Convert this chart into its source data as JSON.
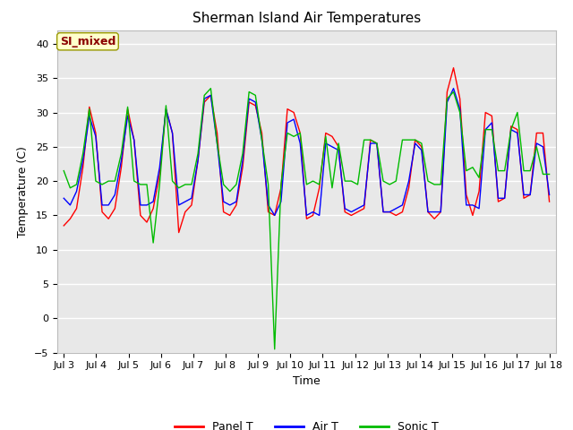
{
  "title": "Sherman Island Air Temperatures",
  "xlabel": "Time",
  "ylabel": "Temperature (C)",
  "ylim": [
    -5,
    42
  ],
  "yticks": [
    -5,
    0,
    5,
    10,
    15,
    20,
    25,
    30,
    35,
    40
  ],
  "xtick_labels": [
    "Jul 3",
    "Jul 4",
    "Jul 5",
    "Jul 6",
    "Jul 7",
    "Jul 8",
    "Jul 9",
    "Jul 10",
    "Jul 11",
    "Jul 12",
    "Jul 13",
    "Jul 14",
    "Jul 15",
    "Jul 16",
    "Jul 17",
    "Jul 18"
  ],
  "annotation_text": "SI_mixed",
  "annotation_color": "#8B0000",
  "annotation_bg": "#FFFFCC",
  "panel_color": "#FF0000",
  "air_color": "#0000FF",
  "sonic_color": "#00BB00",
  "bg_color": "#E8E8E8",
  "legend_panel": "Panel T",
  "legend_air": "Air T",
  "legend_sonic": "Sonic T",
  "panel_t": [
    13.5,
    14.5,
    16.0,
    22.0,
    30.8,
    27.0,
    15.5,
    14.5,
    16.0,
    22.0,
    30.5,
    26.0,
    15.0,
    14.0,
    16.0,
    21.0,
    30.5,
    27.0,
    12.5,
    15.5,
    16.5,
    23.0,
    31.5,
    32.5,
    27.0,
    15.5,
    15.0,
    16.5,
    22.0,
    31.5,
    31.0,
    27.0,
    15.5,
    15.0,
    19.0,
    30.5,
    30.0,
    27.0,
    14.5,
    15.0,
    19.0,
    27.0,
    26.5,
    25.0,
    15.5,
    15.0,
    15.5,
    16.0,
    26.0,
    25.5,
    15.5,
    15.5,
    15.0,
    15.5,
    19.0,
    26.0,
    25.0,
    15.5,
    14.5,
    15.5,
    33.0,
    36.5,
    32.0,
    18.0,
    15.0,
    18.5,
    30.0,
    29.5,
    17.0,
    17.5,
    28.0,
    27.5,
    17.5,
    18.0,
    27.0,
    27.0,
    17.0
  ],
  "air_t": [
    17.5,
    16.5,
    18.5,
    23.0,
    29.5,
    26.5,
    16.5,
    16.5,
    18.0,
    23.0,
    29.5,
    26.0,
    16.5,
    16.5,
    17.0,
    22.0,
    30.5,
    27.0,
    16.5,
    17.0,
    17.5,
    23.0,
    32.0,
    32.5,
    25.5,
    17.0,
    16.5,
    17.0,
    23.0,
    32.0,
    31.5,
    26.0,
    16.5,
    15.0,
    17.0,
    28.5,
    29.0,
    25.5,
    15.0,
    15.5,
    15.0,
    25.5,
    25.0,
    24.5,
    16.0,
    15.5,
    16.0,
    16.5,
    25.5,
    25.5,
    15.5,
    15.5,
    16.0,
    16.5,
    20.0,
    25.5,
    24.5,
    15.5,
    15.5,
    15.5,
    31.5,
    33.5,
    30.5,
    16.5,
    16.5,
    16.0,
    27.5,
    28.5,
    17.5,
    17.5,
    27.5,
    27.0,
    18.0,
    18.0,
    25.5,
    25.0,
    18.0
  ],
  "sonic_t": [
    21.5,
    19.0,
    19.5,
    24.0,
    30.5,
    20.0,
    19.5,
    20.0,
    20.0,
    24.0,
    30.8,
    20.0,
    19.5,
    19.5,
    11.0,
    19.5,
    31.0,
    20.0,
    19.0,
    19.5,
    19.5,
    24.0,
    32.5,
    33.5,
    25.5,
    19.5,
    18.5,
    19.5,
    24.0,
    33.0,
    32.5,
    26.0,
    19.5,
    -4.5,
    19.5,
    27.0,
    26.5,
    27.0,
    19.5,
    20.0,
    19.5,
    26.5,
    19.0,
    25.5,
    20.0,
    20.0,
    19.5,
    26.0,
    26.0,
    25.5,
    20.0,
    19.5,
    20.0,
    26.0,
    26.0,
    26.0,
    25.5,
    20.0,
    19.5,
    19.5,
    32.0,
    33.0,
    30.0,
    21.5,
    22.0,
    20.5,
    27.5,
    27.5,
    21.5,
    21.5,
    27.5,
    30.0,
    21.5,
    21.5,
    25.0,
    21.0,
    21.0
  ],
  "n_points": 77
}
